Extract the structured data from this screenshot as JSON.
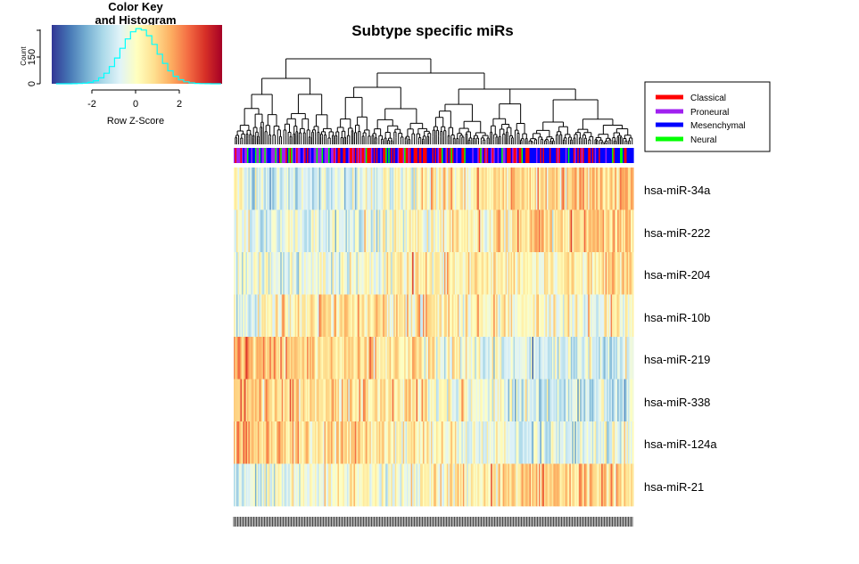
{
  "title": "Subtype specific miRs",
  "color_key": {
    "title_line1": "Color Key",
    "title_line2": "and Histogram",
    "ylabel": "Count",
    "yticks": [
      "0",
      "150"
    ],
    "xticks": [
      "-2",
      "0",
      "2"
    ],
    "xlabel": "Row Z-Score",
    "histogram_color": "#00ffff",
    "gradient": [
      "#313695",
      "#4575b4",
      "#74add1",
      "#abd9e9",
      "#e0f3f8",
      "#ffffbf",
      "#fee090",
      "#fdae61",
      "#f46d43",
      "#d73027",
      "#a50026"
    ]
  },
  "legend": {
    "entries": [
      {
        "label": "Classical",
        "color": "#ff0000"
      },
      {
        "label": "Proneural",
        "color": "#a020f0"
      },
      {
        "label": "Mesenchymal",
        "color": "#0000ff"
      },
      {
        "label": "Neural",
        "color": "#00ff00"
      }
    ]
  },
  "chart_data": {
    "type": "heatmap",
    "title": "Subtype specific miRs",
    "rows": [
      "hsa-miR-34a",
      "hsa-miR-222",
      "hsa-miR-204",
      "hsa-miR-10b",
      "hsa-miR-219",
      "hsa-miR-338",
      "hsa-miR-124a",
      "hsa-miR-21"
    ],
    "color_scale_label": "Row Z-Score",
    "color_scale_ticks": [
      -2,
      0,
      2
    ],
    "zlim": [
      -4,
      4
    ],
    "n_columns_approx": 300,
    "column_annotation": [
      "Classical",
      "Proneural",
      "Mesenchymal",
      "Neural"
    ],
    "row_trend_left_to_right_zscore": [
      [
        -0.5,
        -1.2,
        0.2,
        0.8,
        1.0
      ],
      [
        -0.6,
        -0.8,
        0.2,
        0.8,
        1.2
      ],
      [
        -0.4,
        -0.5,
        0.4,
        0.2,
        1.0
      ],
      [
        -0.8,
        0.6,
        0.5,
        0.1,
        -0.2
      ],
      [
        1.5,
        0.8,
        0.2,
        -1.0,
        -0.8
      ],
      [
        1.3,
        0.8,
        0.3,
        -1.0,
        -0.9
      ],
      [
        1.2,
        0.6,
        0.2,
        -0.9,
        -0.8
      ],
      [
        -1.0,
        0.0,
        0.0,
        1.0,
        0.8
      ]
    ],
    "grid": false,
    "legend_position": "top-right"
  }
}
